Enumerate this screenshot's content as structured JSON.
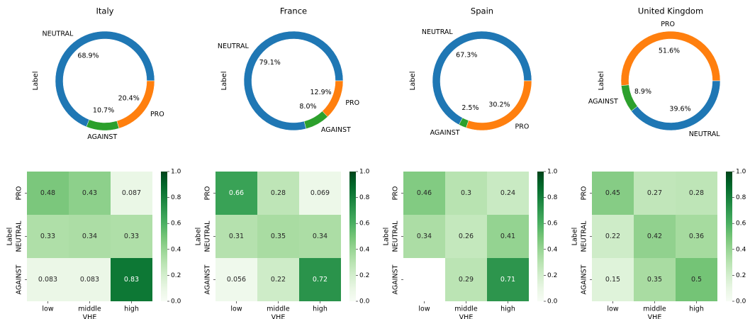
{
  "colors": {
    "PRO": "#ff7f0e",
    "NEUTRAL": "#1f77b4",
    "AGAINST": "#2ca02c",
    "heatmap_cmap": "Greens"
  },
  "chart_data": [
    {
      "type": "pie",
      "style": "donut",
      "title": "Italy",
      "ylabel": "Label",
      "slices": [
        {
          "label": "NEUTRAL",
          "value": 68.9,
          "text": "68.9%"
        },
        {
          "label": "AGAINST",
          "value": 10.7,
          "text": "10.7%"
        },
        {
          "label": "PRO",
          "value": 20.4,
          "text": "20.4%"
        }
      ]
    },
    {
      "type": "pie",
      "style": "donut",
      "title": "France",
      "ylabel": "Label",
      "slices": [
        {
          "label": "NEUTRAL",
          "value": 79.1,
          "text": "79.1%"
        },
        {
          "label": "AGAINST",
          "value": 8.0,
          "text": "8.0%"
        },
        {
          "label": "PRO",
          "value": 12.9,
          "text": "12.9%"
        }
      ]
    },
    {
      "type": "pie",
      "style": "donut",
      "title": "Spain",
      "ylabel": "Label",
      "slices": [
        {
          "label": "NEUTRAL",
          "value": 67.3,
          "text": "67.3%"
        },
        {
          "label": "AGAINST",
          "value": 2.5,
          "text": "2.5%"
        },
        {
          "label": "PRO",
          "value": 30.2,
          "text": "30.2%"
        }
      ]
    },
    {
      "type": "pie",
      "style": "donut",
      "title": "United Kingdom",
      "ylabel": "Label",
      "slices": [
        {
          "label": "PRO",
          "value": 51.6,
          "text": "51.6%"
        },
        {
          "label": "AGAINST",
          "value": 8.9,
          "text": "8.9%"
        },
        {
          "label": "NEUTRAL",
          "value": 39.6,
          "text": "39.6%"
        }
      ]
    },
    {
      "type": "heatmap",
      "xlabel": "VHE",
      "ylabel": "Label",
      "x_categories": [
        "low",
        "middle",
        "high"
      ],
      "y_categories": [
        "PRO",
        "NEUTRAL",
        "AGAINST"
      ],
      "values": [
        [
          0.48,
          0.43,
          0.087
        ],
        [
          0.33,
          0.34,
          0.33
        ],
        [
          0.083,
          0.083,
          0.83
        ]
      ],
      "labels": [
        [
          "0.48",
          "0.43",
          "0.087"
        ],
        [
          "0.33",
          "0.34",
          "0.33"
        ],
        [
          "0.083",
          "0.083",
          "0.83"
        ]
      ],
      "colorbar": {
        "min": 0.0,
        "max": 1.0,
        "ticks": [
          "0.0",
          "0.2",
          "0.4",
          "0.6",
          "0.8",
          "1.0"
        ]
      }
    },
    {
      "type": "heatmap",
      "xlabel": "VHE",
      "ylabel": "Label",
      "x_categories": [
        "low",
        "middle",
        "high"
      ],
      "y_categories": [
        "PRO",
        "NEUTRAL",
        "AGAINST"
      ],
      "values": [
        [
          0.66,
          0.28,
          0.069
        ],
        [
          0.31,
          0.35,
          0.34
        ],
        [
          0.056,
          0.22,
          0.72
        ]
      ],
      "labels": [
        [
          "0.66",
          "0.28",
          "0.069"
        ],
        [
          "0.31",
          "0.35",
          "0.34"
        ],
        [
          "0.056",
          "0.22",
          "0.72"
        ]
      ],
      "colorbar": {
        "min": 0.0,
        "max": 1.0,
        "ticks": [
          "0.0",
          "0.2",
          "0.4",
          "0.6",
          "0.8",
          "1.0"
        ]
      }
    },
    {
      "type": "heatmap",
      "xlabel": "VHE",
      "ylabel": "Label",
      "x_categories": [
        "low",
        "middle",
        "high"
      ],
      "y_categories": [
        "PRO",
        "NEUTRAL",
        "AGAINST"
      ],
      "values": [
        [
          0.46,
          0.3,
          0.24
        ],
        [
          0.34,
          0.26,
          0.41
        ],
        [
          null,
          0.29,
          0.71
        ]
      ],
      "labels": [
        [
          "0.46",
          "0.3",
          "0.24"
        ],
        [
          "0.34",
          "0.26",
          "0.41"
        ],
        [
          "",
          "0.29",
          "0.71"
        ]
      ],
      "colorbar": {
        "min": 0.0,
        "max": 1.0,
        "ticks": [
          "0.0",
          "0.2",
          "0.4",
          "0.6",
          "0.8",
          "1.0"
        ]
      }
    },
    {
      "type": "heatmap",
      "xlabel": "VHE",
      "ylabel": "Label",
      "x_categories": [
        "low",
        "middle",
        "high"
      ],
      "y_categories": [
        "PRO",
        "NEUTRAL",
        "AGAINST"
      ],
      "values": [
        [
          0.45,
          0.27,
          0.28
        ],
        [
          0.22,
          0.42,
          0.36
        ],
        [
          0.15,
          0.35,
          0.5
        ]
      ],
      "labels": [
        [
          "0.45",
          "0.27",
          "0.28"
        ],
        [
          "0.22",
          "0.42",
          "0.36"
        ],
        [
          "0.15",
          "0.35",
          "0.5"
        ]
      ],
      "colorbar": {
        "min": 0.0,
        "max": 1.0,
        "ticks": [
          "0.0",
          "0.2",
          "0.4",
          "0.6",
          "0.8",
          "1.0"
        ]
      }
    }
  ]
}
